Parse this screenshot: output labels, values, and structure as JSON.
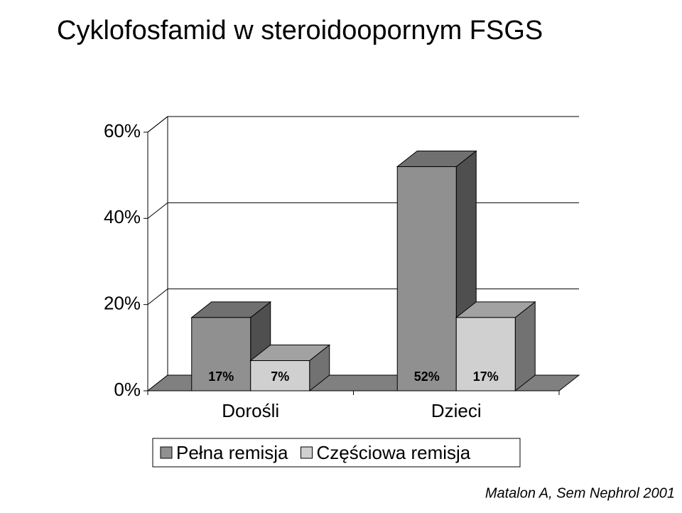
{
  "chart_data": {
    "type": "bar3d",
    "title": "Cyklofosfamid w steroidoopornym FSGS",
    "categories": [
      "Dorośli",
      "Dzieci"
    ],
    "series": [
      {
        "name": "Pełna remisja",
        "color": "#909090",
        "values": [
          17,
          52
        ],
        "value_labels": [
          "17%",
          "52%"
        ]
      },
      {
        "name": "Częściowa remisja",
        "color": "#d0d0d0",
        "values": [
          7,
          17
        ],
        "value_labels": [
          "7%",
          "17%"
        ]
      }
    ],
    "ylim": [
      0,
      60
    ],
    "yticks": [
      {
        "value": 0,
        "label": "0%"
      },
      {
        "value": 20,
        "label": "20%"
      },
      {
        "value": 40,
        "label": "40%"
      },
      {
        "value": 60,
        "label": "60%"
      }
    ],
    "grid": true,
    "legend": "bottom",
    "source": "Matalon A, Sem Nephrol 2001"
  }
}
